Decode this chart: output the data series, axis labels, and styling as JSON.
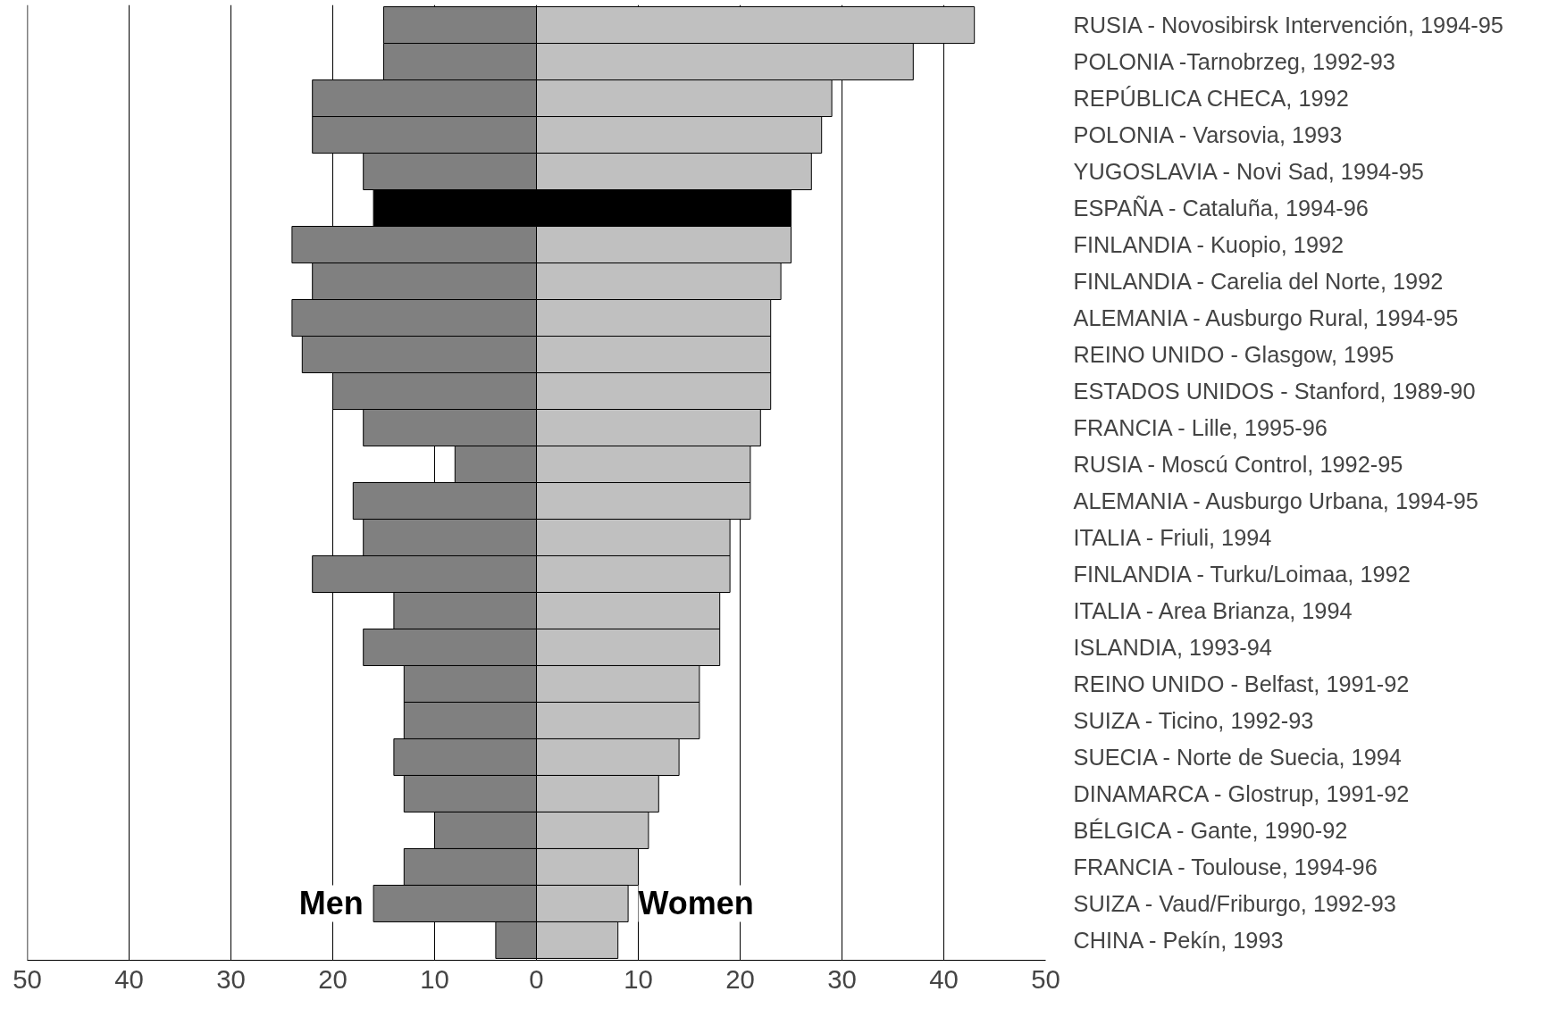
{
  "chart_data": {
    "type": "bar",
    "orientation": "horizontal",
    "stacked": true,
    "categories": [
      "RUSIA - Novosibirsk Intervención, 1994-95",
      "POLONIA -Tarnobrzeg, 1992-93",
      "REPÚBLICA CHECA, 1992",
      "POLONIA - Varsovia, 1993",
      "YUGOSLAVIA - Novi Sad, 1994-95",
      "ESPAÑA - Cataluña, 1994-96",
      "FINLANDIA - Kuopio, 1992",
      "FINLANDIA - Carelia del Norte, 1992",
      "ALEMANIA - Ausburgo Rural, 1994-95",
      "REINO UNIDO - Glasgow, 1995",
      "ESTADOS UNIDOS - Stanford, 1989-90",
      "FRANCIA - Lille, 1995-96",
      "RUSIA - Moscú Control, 1992-95",
      "ALEMANIA - Ausburgo Urbana, 1994-95",
      "ITALIA - Friuli, 1994",
      "FINLANDIA - Turku/Loimaa, 1992",
      "ITALIA - Area Brianza, 1994",
      "ISLANDIA, 1993-94",
      "REINO UNIDO - Belfast, 1991-92",
      "SUIZA - Ticino, 1992-93",
      "SUECIA - Norte de Suecia, 1994",
      "DINAMARCA - Glostrup, 1991-92",
      "BÉLGICA - Gante, 1990-92",
      "FRANCIA - Toulouse, 1994-96",
      "SUIZA - Vaud/Friburgo, 1992-93",
      "CHINA - Pekín, 1993"
    ],
    "series": [
      {
        "name": "Men",
        "colors": [
          "#808080",
          "#808080",
          "#808080",
          "#808080",
          "#808080",
          "#000000",
          "#808080",
          "#808080",
          "#808080",
          "#808080",
          "#808080",
          "#808080",
          "#808080",
          "#808080",
          "#808080",
          "#808080",
          "#808080",
          "#808080",
          "#808080",
          "#808080",
          "#808080",
          "#808080",
          "#808080",
          "#808080",
          "#808080",
          "#808080"
        ],
        "values": [
          -15,
          -15,
          -22,
          -22,
          -17,
          -16,
          -24,
          -22,
          -24,
          -23,
          -20,
          -17,
          -8,
          -18,
          -17,
          -22,
          -14,
          -17,
          -13,
          -13,
          -14,
          -13,
          -10,
          -13,
          -16,
          -4
        ]
      },
      {
        "name": "Women",
        "colors": [
          "#c0c0c0",
          "#c0c0c0",
          "#c0c0c0",
          "#c0c0c0",
          "#c0c0c0",
          "#000000",
          "#c0c0c0",
          "#c0c0c0",
          "#c0c0c0",
          "#c0c0c0",
          "#c0c0c0",
          "#c0c0c0",
          "#c0c0c0",
          "#c0c0c0",
          "#c0c0c0",
          "#c0c0c0",
          "#c0c0c0",
          "#c0c0c0",
          "#c0c0c0",
          "#c0c0c0",
          "#c0c0c0",
          "#c0c0c0",
          "#c0c0c0",
          "#c0c0c0",
          "#c0c0c0",
          "#c0c0c0"
        ],
        "values": [
          43,
          37,
          29,
          28,
          27,
          25,
          25,
          24,
          23,
          23,
          23,
          22,
          21,
          21,
          19,
          19,
          18,
          18,
          16,
          16,
          14,
          12,
          11,
          10,
          9,
          8
        ]
      }
    ],
    "xlim": [
      -50,
      50
    ],
    "xticks": [
      {
        "value": -50,
        "label": "50"
      },
      {
        "value": -40,
        "label": "40"
      },
      {
        "value": -30,
        "label": "30"
      },
      {
        "value": -20,
        "label": "20"
      },
      {
        "value": -10,
        "label": "10"
      },
      0,
      10,
      20,
      30,
      40,
      50
    ],
    "grid": "x"
  }
}
